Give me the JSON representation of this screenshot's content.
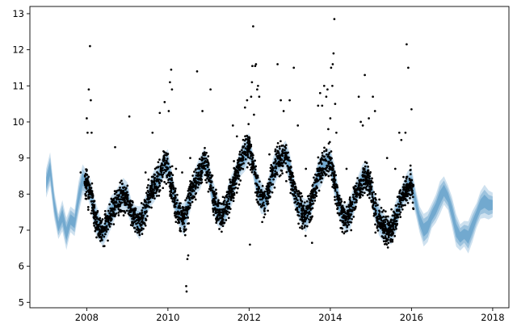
{
  "chart_data": {
    "type": "scatter",
    "title": "",
    "xlabel": "",
    "ylabel": "",
    "xlim": [
      2006.6,
      2018.4
    ],
    "ylim": [
      4.85,
      13.2
    ],
    "x_ticks": [
      2008,
      2010,
      2012,
      2014,
      2016,
      2018
    ],
    "y_ticks": [
      5,
      6,
      7,
      8,
      9,
      10,
      11,
      12,
      13
    ],
    "grid": false,
    "legend": "none",
    "colors": {
      "points": "#000000",
      "band": "#1f77b4",
      "axes": "#000000"
    },
    "forecast_band": {
      "x": [
        2007.0,
        2007.1,
        2007.2,
        2007.3,
        2007.4,
        2007.5,
        2007.6,
        2007.7,
        2007.8,
        2007.9,
        2008.0,
        2008.1,
        2008.2,
        2008.3,
        2008.4,
        2008.5,
        2008.6,
        2008.7,
        2008.8,
        2008.9,
        2009.0,
        2009.1,
        2009.2,
        2009.3,
        2009.4,
        2009.5,
        2009.6,
        2009.7,
        2009.8,
        2009.9,
        2010.0,
        2010.1,
        2010.2,
        2010.3,
        2010.4,
        2010.5,
        2010.6,
        2010.7,
        2010.8,
        2010.9,
        2011.0,
        2011.1,
        2011.2,
        2011.3,
        2011.4,
        2011.5,
        2011.6,
        2011.7,
        2011.8,
        2011.9,
        2012.0,
        2012.1,
        2012.2,
        2012.3,
        2012.4,
        2012.5,
        2012.6,
        2012.7,
        2012.8,
        2012.9,
        2013.0,
        2013.1,
        2013.2,
        2013.3,
        2013.4,
        2013.5,
        2013.6,
        2013.7,
        2013.8,
        2013.9,
        2014.0,
        2014.1,
        2014.2,
        2014.3,
        2014.4,
        2014.5,
        2014.6,
        2014.7,
        2014.8,
        2014.9,
        2015.0,
        2015.1,
        2015.2,
        2015.3,
        2015.4,
        2015.5,
        2015.6,
        2015.7,
        2015.8,
        2015.9,
        2016.0,
        2016.1,
        2016.2,
        2016.3,
        2016.4,
        2016.5,
        2016.6,
        2016.7,
        2016.8,
        2016.9,
        2017.0,
        2017.1,
        2017.2,
        2017.3,
        2017.4,
        2017.5,
        2017.6,
        2017.7,
        2017.8,
        2017.9,
        2018.0
      ],
      "center": [
        8.3,
        8.7,
        7.7,
        7.1,
        7.4,
        6.9,
        7.3,
        7.2,
        7.9,
        8.4,
        8.3,
        8.0,
        7.4,
        7.1,
        6.9,
        7.2,
        7.5,
        7.7,
        7.9,
        8.0,
        7.9,
        7.5,
        7.3,
        7.2,
        7.4,
        7.8,
        8.1,
        8.3,
        8.5,
        8.8,
        8.8,
        8.2,
        7.7,
        7.4,
        7.3,
        7.7,
        8.1,
        8.4,
        8.6,
        8.9,
        8.6,
        8.0,
        7.6,
        7.4,
        7.5,
        7.9,
        8.2,
        8.6,
        8.9,
        9.1,
        9.3,
        8.8,
        8.2,
        7.9,
        7.8,
        8.2,
        8.6,
        8.9,
        9.0,
        9.1,
        8.7,
        8.1,
        7.7,
        7.5,
        7.4,
        7.6,
        8.1,
        8.5,
        8.7,
        8.9,
        8.9,
        8.4,
        7.8,
        7.4,
        7.3,
        7.5,
        7.9,
        8.2,
        8.4,
        8.5,
        8.2,
        7.6,
        7.3,
        7.1,
        7.0,
        7.0,
        7.3,
        7.7,
        8.0,
        8.2,
        8.3,
        7.8,
        7.3,
        7.0,
        7.1,
        7.4,
        7.6,
        7.9,
        8.1,
        7.9,
        7.5,
        7.0,
        6.8,
        6.9,
        6.8,
        7.1,
        7.4,
        7.7,
        7.8,
        7.7,
        7.7
      ],
      "half_width": 0.4
    },
    "outliers": [
      {
        "x": 2007.85,
        "y": 8.6
      },
      {
        "x": 2008.0,
        "y": 10.1
      },
      {
        "x": 2008.05,
        "y": 10.9
      },
      {
        "x": 2008.08,
        "y": 12.1
      },
      {
        "x": 2008.1,
        "y": 10.6
      },
      {
        "x": 2008.02,
        "y": 9.7
      },
      {
        "x": 2008.12,
        "y": 9.7
      },
      {
        "x": 2008.7,
        "y": 9.3
      },
      {
        "x": 2009.05,
        "y": 10.15
      },
      {
        "x": 2009.45,
        "y": 8.6
      },
      {
        "x": 2009.62,
        "y": 9.7
      },
      {
        "x": 2009.8,
        "y": 10.25
      },
      {
        "x": 2009.92,
        "y": 10.55
      },
      {
        "x": 2010.02,
        "y": 10.3
      },
      {
        "x": 2010.05,
        "y": 11.1
      },
      {
        "x": 2010.08,
        "y": 11.45
      },
      {
        "x": 2010.1,
        "y": 10.9
      },
      {
        "x": 2010.2,
        "y": 8.7
      },
      {
        "x": 2010.35,
        "y": 8.6
      },
      {
        "x": 2010.45,
        "y": 5.45
      },
      {
        "x": 2010.46,
        "y": 5.3
      },
      {
        "x": 2010.48,
        "y": 6.2
      },
      {
        "x": 2010.5,
        "y": 6.3
      },
      {
        "x": 2010.55,
        "y": 9.0
      },
      {
        "x": 2010.72,
        "y": 11.4
      },
      {
        "x": 2010.85,
        "y": 10.3
      },
      {
        "x": 2011.05,
        "y": 10.9
      },
      {
        "x": 2011.4,
        "y": 7.9
      },
      {
        "x": 2011.7,
        "y": 9.6
      },
      {
        "x": 2011.9,
        "y": 10.4
      },
      {
        "x": 2011.95,
        "y": 10.6
      },
      {
        "x": 2012.0,
        "y": 9.5
      },
      {
        "x": 2012.02,
        "y": 6.6
      },
      {
        "x": 2012.05,
        "y": 10.7
      },
      {
        "x": 2012.07,
        "y": 11.1
      },
      {
        "x": 2012.08,
        "y": 11.55
      },
      {
        "x": 2012.1,
        "y": 12.65
      },
      {
        "x": 2012.12,
        "y": 10.2
      },
      {
        "x": 2012.15,
        "y": 11.55
      },
      {
        "x": 2012.17,
        "y": 11.6
      },
      {
        "x": 2012.2,
        "y": 10.9
      },
      {
        "x": 2012.22,
        "y": 11.0
      },
      {
        "x": 2012.25,
        "y": 10.7
      },
      {
        "x": 2012.5,
        "y": 9.1
      },
      {
        "x": 2012.7,
        "y": 11.6
      },
      {
        "x": 2012.78,
        "y": 10.6
      },
      {
        "x": 2012.85,
        "y": 10.3
      },
      {
        "x": 2013.0,
        "y": 10.6
      },
      {
        "x": 2013.1,
        "y": 11.5
      },
      {
        "x": 2013.2,
        "y": 9.9
      },
      {
        "x": 2013.4,
        "y": 8.7
      },
      {
        "x": 2013.55,
        "y": 6.65
      },
      {
        "x": 2013.7,
        "y": 10.45
      },
      {
        "x": 2013.75,
        "y": 10.8
      },
      {
        "x": 2013.8,
        "y": 10.45
      },
      {
        "x": 2013.85,
        "y": 11.0
      },
      {
        "x": 2013.9,
        "y": 10.7
      },
      {
        "x": 2013.93,
        "y": 10.9
      },
      {
        "x": 2013.95,
        "y": 9.8
      },
      {
        "x": 2014.0,
        "y": 10.1
      },
      {
        "x": 2014.02,
        "y": 11.5
      },
      {
        "x": 2014.05,
        "y": 11.0
      },
      {
        "x": 2014.06,
        "y": 11.6
      },
      {
        "x": 2014.08,
        "y": 11.9
      },
      {
        "x": 2014.1,
        "y": 12.85
      },
      {
        "x": 2014.12,
        "y": 10.5
      },
      {
        "x": 2014.15,
        "y": 9.7
      },
      {
        "x": 2014.4,
        "y": 8.7
      },
      {
        "x": 2014.7,
        "y": 10.7
      },
      {
        "x": 2014.75,
        "y": 10.0
      },
      {
        "x": 2014.8,
        "y": 9.9
      },
      {
        "x": 2014.85,
        "y": 11.3
      },
      {
        "x": 2014.95,
        "y": 10.1
      },
      {
        "x": 2015.05,
        "y": 10.7
      },
      {
        "x": 2015.1,
        "y": 10.3
      },
      {
        "x": 2015.4,
        "y": 9.0
      },
      {
        "x": 2015.7,
        "y": 9.7
      },
      {
        "x": 2015.75,
        "y": 9.5
      },
      {
        "x": 2015.85,
        "y": 9.7
      },
      {
        "x": 2015.88,
        "y": 12.15
      },
      {
        "x": 2015.92,
        "y": 11.5
      },
      {
        "x": 2016.0,
        "y": 10.35
      },
      {
        "x": 2015.6,
        "y": 8.7
      },
      {
        "x": 2011.6,
        "y": 9.9
      }
    ],
    "observed_range": [
      2007.95,
      2016.05
    ],
    "observed_spread": 0.3,
    "observed_count": 2900
  }
}
